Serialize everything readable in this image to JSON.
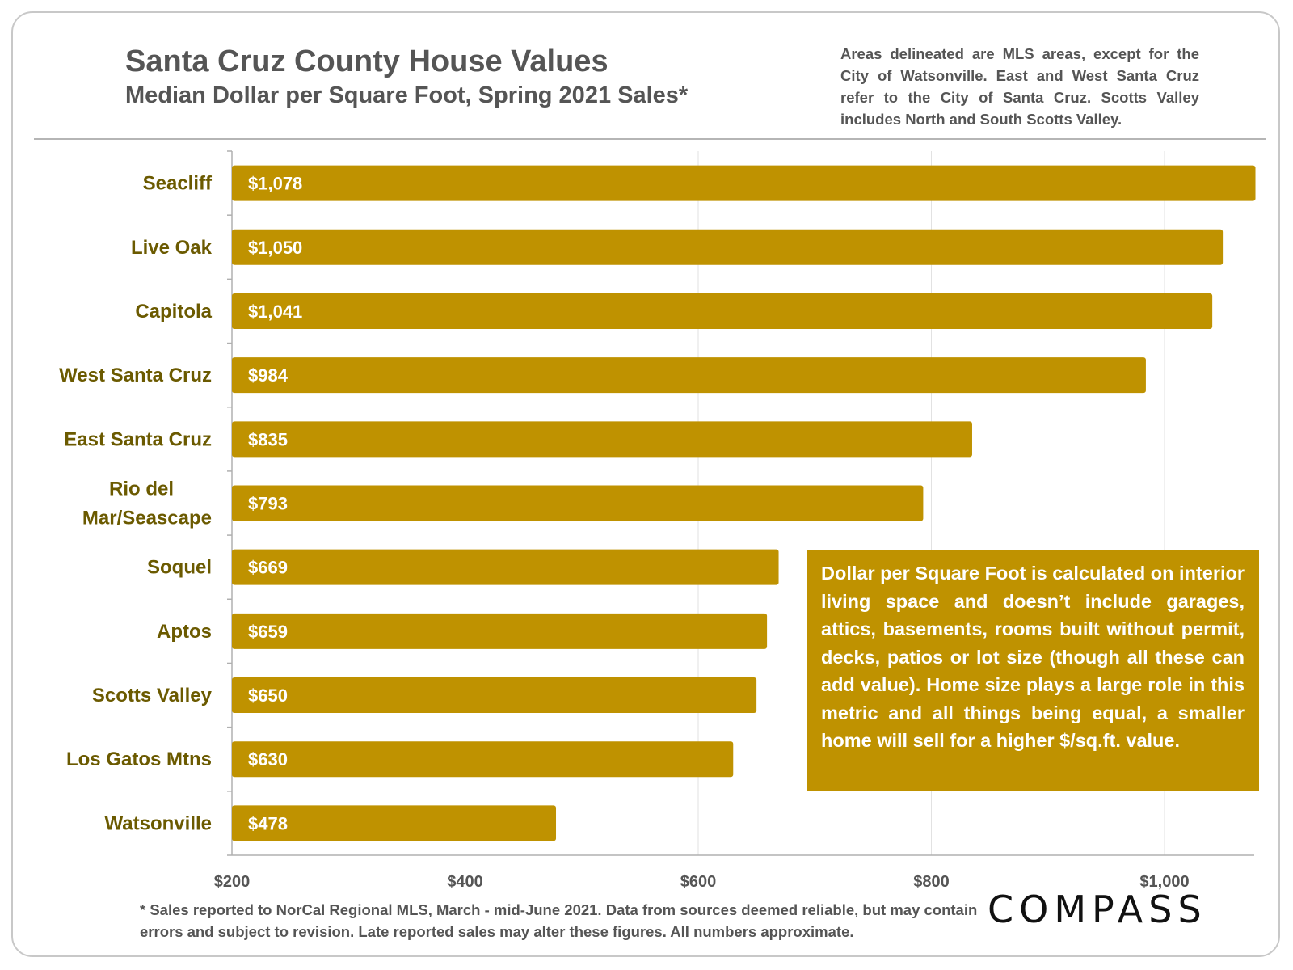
{
  "header": {
    "title": "Santa Cruz County House Values",
    "subtitle": "Median Dollar per Square Foot, Spring 2021 Sales*",
    "note": "Areas delineated are MLS areas, except for the City of Watsonville. East and West Santa Cruz refer to the City of Santa Cruz. Scotts Valley includes North and South Scotts Valley."
  },
  "callout": {
    "text": "Dollar per Square Foot is calculated on interior living space and doesn’t include garages, attics, basements, rooms built without permit, decks, patios or lot size (though all these can add value). Home size plays a large role in this metric and all things being equal, a smaller home will sell for a higher $/sq.ft. value."
  },
  "footnote": {
    "text": "* Sales reported to NorCal Regional MLS, March - mid-June 2021. Data from sources deemed reliable, but may contain errors and subject to revision. Late reported sales may alter these figures. All numbers approximate."
  },
  "logo": {
    "text": "COMPASS"
  },
  "colors": {
    "bar": "#bf9200",
    "category_text": "#6b5a00",
    "axis_text": "#555555"
  },
  "chart_data": {
    "type": "bar",
    "orientation": "horizontal",
    "title": "Santa Cruz County House Values",
    "subtitle": "Median Dollar per Square Foot, Spring 2021 Sales*",
    "xlabel": "",
    "ylabel": "",
    "xlim": [
      200,
      1080
    ],
    "grid": true,
    "categories": [
      "Seacliff",
      "Live Oak",
      "Capitola",
      "West Santa Cruz",
      "East Santa Cruz",
      "Rio del Mar/Seascape",
      "Soquel",
      "Aptos",
      "Scotts Valley",
      "Los Gatos Mtns",
      "Watsonville"
    ],
    "category_lines": [
      [
        "Seacliff"
      ],
      [
        "Live Oak"
      ],
      [
        "Capitola"
      ],
      [
        "West Santa Cruz"
      ],
      [
        "East Santa Cruz"
      ],
      [
        "Rio del",
        "Mar/Seascape"
      ],
      [
        "Soquel"
      ],
      [
        "Aptos"
      ],
      [
        "Scotts Valley"
      ],
      [
        "Los Gatos Mtns"
      ],
      [
        "Watsonville"
      ]
    ],
    "values": [
      1078,
      1050,
      1041,
      984,
      835,
      793,
      669,
      659,
      650,
      630,
      478
    ],
    "value_labels": [
      "$1,078",
      "$1,050",
      "$1,041",
      "$984",
      "$835",
      "$793",
      "$669",
      "$659",
      "$650",
      "$630",
      "$478"
    ],
    "x_ticks": [
      200,
      400,
      600,
      800,
      1000
    ],
    "x_tick_labels": [
      "$200",
      "$400",
      "$600",
      "$800",
      "$1,000"
    ]
  }
}
